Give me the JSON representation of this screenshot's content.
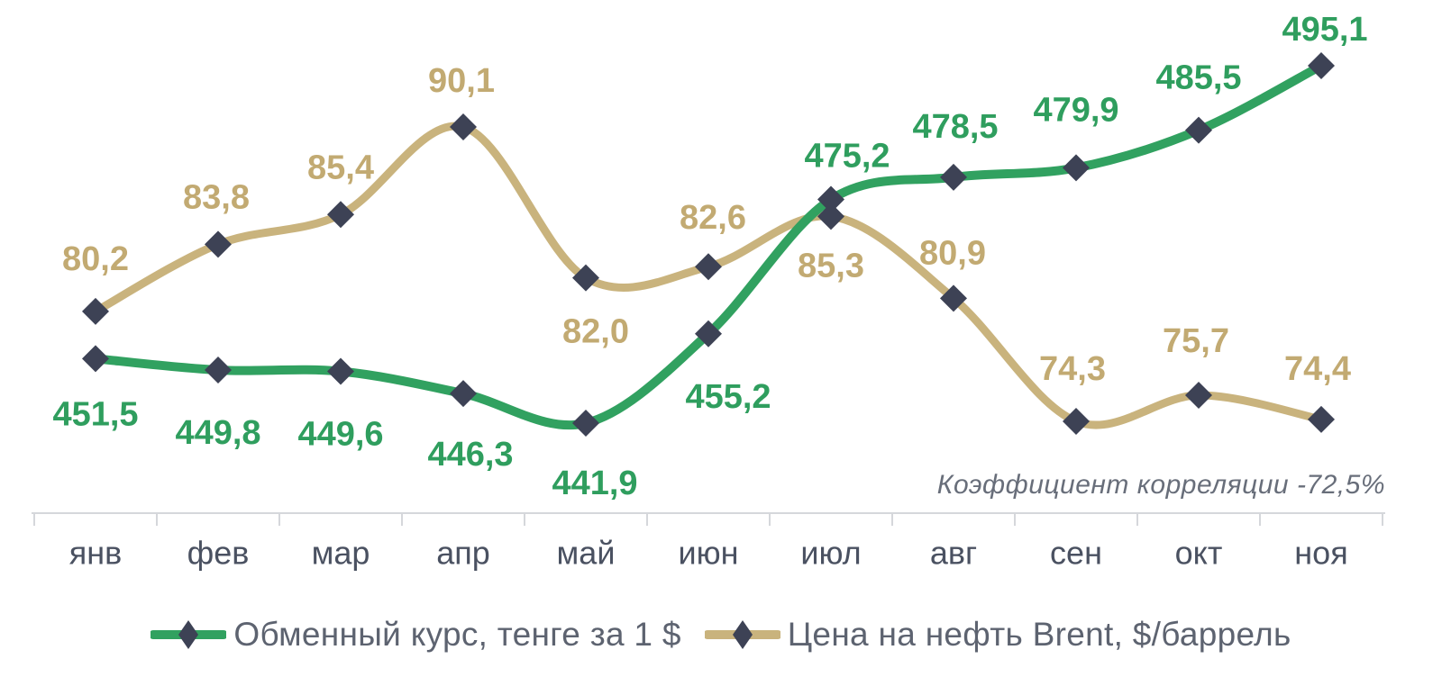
{
  "chart_data": {
    "type": "line",
    "title": "",
    "categories": [
      "янв",
      "фев",
      "мар",
      "апр",
      "май",
      "июн",
      "июл",
      "авг",
      "сен",
      "окт",
      "ноя"
    ],
    "series": [
      {
        "key": "exchange-rate",
        "name": "Обменный курс, тенге за 1 $",
        "color": "#31a160",
        "label_color": "#2f9e5e",
        "values": [
          451.5,
          449.8,
          449.6,
          446.3,
          441.9,
          455.2,
          475.2,
          478.5,
          479.9,
          485.5,
          495.1
        ],
        "axis_range": [
          438,
          498
        ]
      },
      {
        "key": "brent-oil-price",
        "name": "Цена на нефть Brent, $/баррель",
        "color": "#c9b37d",
        "label_color": "#c2aa72",
        "values": [
          80.2,
          83.8,
          85.4,
          90.1,
          82.0,
          82.6,
          85.3,
          80.9,
          74.3,
          75.7,
          74.4
        ],
        "axis_range": [
          72,
          92
        ]
      }
    ],
    "annotation": "Коэффициент корреляции -72,5%",
    "annotation_color": "#686e7a",
    "decimal_separator": ",",
    "marker": {
      "shape": "diamond",
      "color": "#3d4255"
    },
    "axis_color": "#d5d7db",
    "tick_label_color": "#4a5161",
    "legend_position": "bottom",
    "grid": false
  }
}
